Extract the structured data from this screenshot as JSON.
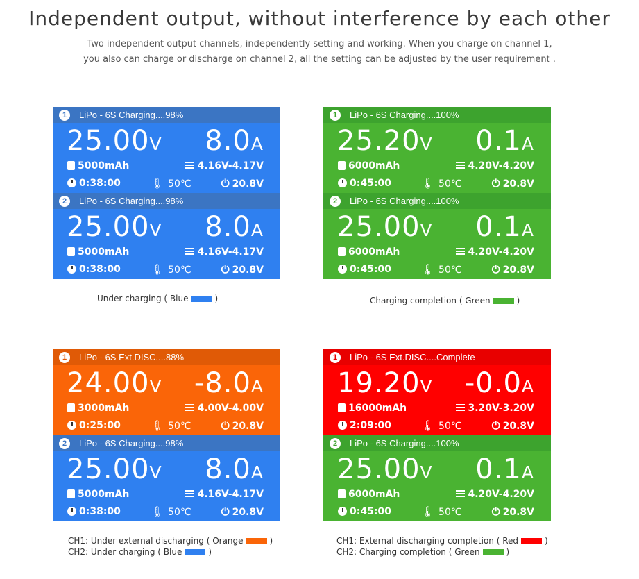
{
  "title": "Independent output, without interference by each other",
  "subtitle_line1": "Two independent output channels, independently setting and working. When you charge on channel 1,",
  "subtitle_line2": "you also can charge or discharge on channel 2, all the setting can be adjusted by the user requirement .",
  "colors": {
    "blue": "#2f80f0",
    "green": "#4ab332",
    "orange": "#fa6508",
    "red": "#ff0000"
  },
  "panels": [
    {
      "ch1": {
        "num": "1",
        "header": "LiPo - 6S Charging....98%",
        "volt": "25.00",
        "volt_unit": "V",
        "amp": "8.0",
        "amp_unit": "A",
        "capacity": "5000mAh",
        "cells": "4.16V-4.17V",
        "time": "0:38:00",
        "temp": "50℃",
        "input": "20.8V"
      },
      "ch2": {
        "num": "2",
        "header": "LiPo - 6S Charging....98%",
        "volt": "25.00",
        "volt_unit": "V",
        "amp": "8.0",
        "amp_unit": "A",
        "capacity": "5000mAh",
        "cells": "4.16V-4.17V",
        "time": "0:38:00",
        "temp": "50℃",
        "input": "20.8V"
      },
      "caption_a": "Under charging ( Blue",
      "caption_a_end": ")"
    },
    {
      "ch1": {
        "num": "1",
        "header": "LiPo - 6S Charging....100%",
        "volt": "25.20",
        "volt_unit": "V",
        "amp": "0.1",
        "amp_unit": "A",
        "capacity": "6000mAh",
        "cells": "4.20V-4.20V",
        "time": "0:45:00",
        "temp": "50℃",
        "input": "20.8V"
      },
      "ch2": {
        "num": "2",
        "header": "LiPo - 6S Charging....100%",
        "volt": "25.00",
        "volt_unit": "V",
        "amp": "0.1",
        "amp_unit": "A",
        "capacity": "6000mAh",
        "cells": "4.20V-4.20V",
        "time": "0:45:00",
        "temp": "50℃",
        "input": "20.8V"
      },
      "caption_a": "Charging completion ( Green",
      "caption_a_end": ")"
    },
    {
      "ch1": {
        "num": "1",
        "header": "LiPo - 6S Ext.DISC....88%",
        "volt": "24.00",
        "volt_unit": "V",
        "amp": "-8.0",
        "amp_unit": "A",
        "capacity": "3000mAh",
        "cells": "4.00V-4.00V",
        "time": "0:25:00",
        "temp": "50℃",
        "input": "20.8V"
      },
      "ch2": {
        "num": "2",
        "header": "LiPo - 6S Charging....98%",
        "volt": "25.00",
        "volt_unit": "V",
        "amp": "8.0",
        "amp_unit": "A",
        "capacity": "5000mAh",
        "cells": "4.16V-4.17V",
        "time": "0:38:00",
        "temp": "50℃",
        "input": "20.8V"
      },
      "caption_a": "CH1: Under external discharging ( Orange",
      "caption_a_end": ")",
      "caption_b": "CH2: Under charging ( Blue",
      "caption_b_end": ")"
    },
    {
      "ch1": {
        "num": "1",
        "header": "LiPo - 6S Ext.DISC....Complete",
        "volt": "19.20",
        "volt_unit": "V",
        "amp": "-0.0",
        "amp_unit": "A",
        "capacity": "16000mAh",
        "cells": "3.20V-3.20V",
        "time": "2:09:00",
        "temp": "50℃",
        "input": "20.8V"
      },
      "ch2": {
        "num": "2",
        "header": "LiPo - 6S Charging....100%",
        "volt": "25.00",
        "volt_unit": "V",
        "amp": "0.1",
        "amp_unit": "A",
        "capacity": "6000mAh",
        "cells": "4.20V-4.20V",
        "time": "0:45:00",
        "temp": "50℃",
        "input": "20.8V"
      },
      "caption_a": "CH1: External discharging completion ( Red",
      "caption_a_end": ")",
      "caption_b": "CH2: Charging completion ( Green",
      "caption_b_end": ")"
    }
  ]
}
